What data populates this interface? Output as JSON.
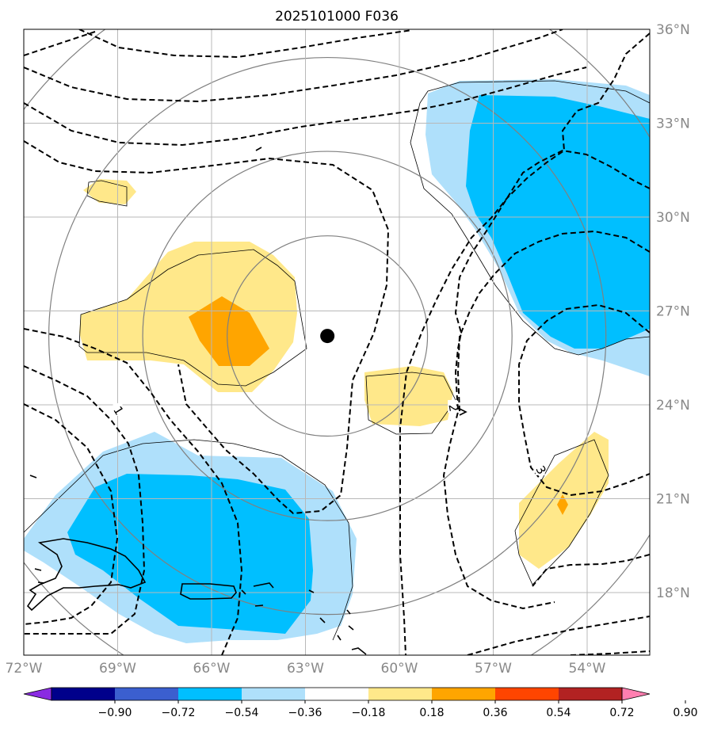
{
  "title": "2025101000 F036",
  "map": {
    "lon_range": [
      -72,
      -52
    ],
    "lat_range": [
      16,
      36
    ],
    "lon_ticks": [
      {
        "value": -72,
        "label": "72°W"
      },
      {
        "value": -69,
        "label": "69°W"
      },
      {
        "value": -66,
        "label": "66°W"
      },
      {
        "value": -63,
        "label": "63°W"
      },
      {
        "value": -60,
        "label": "60°W"
      },
      {
        "value": -57,
        "label": "57°W"
      },
      {
        "value": -54,
        "label": "54°W"
      }
    ],
    "lat_ticks": [
      {
        "value": 36,
        "label": "36°N"
      },
      {
        "value": 33,
        "label": "33°N"
      },
      {
        "value": 30,
        "label": "30°N"
      },
      {
        "value": 27,
        "label": "27°N"
      },
      {
        "value": 24,
        "label": "24°N"
      },
      {
        "value": 21,
        "label": "21°N"
      },
      {
        "value": 18,
        "label": "18°N"
      }
    ],
    "storm_center": {
      "lon": -62.3,
      "lat": 26.2
    },
    "contour_labels": [
      {
        "text": "1",
        "lon": -69.0,
        "lat": 23.8,
        "rotate": 58
      },
      {
        "text": "3",
        "lon": -55.5,
        "lat": 21.9,
        "rotate": 60
      },
      {
        "text": "2",
        "lon": -58.3,
        "lat": 23.9,
        "rotate": 80
      }
    ],
    "gray_rings": [
      {
        "lon": -62.3,
        "lat": 26.2,
        "r_deg": 3.2
      },
      {
        "lon": -62.3,
        "lat": 26.2,
        "r_deg": 5.9
      },
      {
        "lon": -62.3,
        "lat": 26.2,
        "r_deg": 8.9
      },
      {
        "lon": -62.3,
        "lat": 26.2,
        "r_deg": 12.1
      }
    ]
  },
  "colorbar": {
    "tick_labels": [
      "−0.90",
      "−0.72",
      "−0.54",
      "−0.36",
      "−0.18",
      "0.18",
      "0.36",
      "0.54",
      "0.72",
      "0.90"
    ],
    "colors": [
      "#8a2be2",
      "#00008b",
      "#3b5fcf",
      "#00bfff",
      "#afe0fb",
      "#ffffff",
      "#ffe88a",
      "#ffa500",
      "#ff4500",
      "#b22222",
      "#ff7fb0"
    ]
  }
}
